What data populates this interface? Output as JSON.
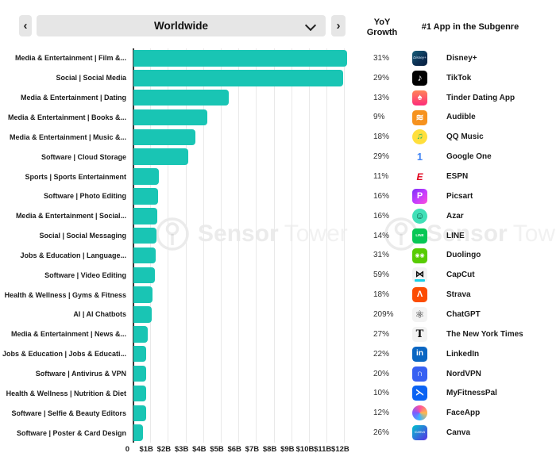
{
  "header": {
    "prev_label": "‹",
    "next_label": "›",
    "region_selector": {
      "value": "Worldwide"
    }
  },
  "columns": {
    "yoy_line1": "YoY",
    "yoy_line2": "Growth",
    "app_header": "#1 App in the Subgenre"
  },
  "watermark": {
    "bold": "Sensor",
    "light": "Tower"
  },
  "chart_data": {
    "type": "bar",
    "orientation": "horizontal",
    "unit": "USD billions (revenue)",
    "grid": true,
    "bar_color": "#19c5b4",
    "xlim": [
      0,
      12.5
    ],
    "x_ticks": [
      "0",
      "$1B",
      "$2B",
      "$3B",
      "$4B",
      "$5B",
      "$6B",
      "$7B",
      "$8B",
      "$9B",
      "$10B",
      "$11B",
      "$12B"
    ],
    "categories": [
      "Media & Entertainment | Film &...",
      "Social | Social Media",
      "Media & Entertainment | Dating",
      "Media & Entertainment | Books &...",
      "Media & Entertainment | Music &...",
      "Software | Cloud Storage",
      "Sports | Sports Entertainment",
      "Software | Photo Editing",
      "Media & Entertainment | Social...",
      "Social | Social Messaging",
      "Jobs & Education | Language...",
      "Software | Video Editing",
      "Health & Wellness | Gyms & Fitness",
      "AI | AI Chatbots",
      "Media & Entertainment | News &...",
      "Jobs & Education | Jobs & Educati...",
      "Software | Antivirus & VPN",
      "Health & Wellness | Nutrition & Diet",
      "Software | Selfie & Beauty Editors",
      "Software | Poster & Card Design"
    ],
    "values": [
      12.1,
      11.9,
      5.4,
      4.2,
      3.5,
      3.1,
      1.45,
      1.4,
      1.35,
      1.3,
      1.25,
      1.2,
      1.1,
      1.05,
      0.8,
      0.7,
      0.7,
      0.7,
      0.7,
      0.55
    ],
    "yoy_growth": [
      "31%",
      "29%",
      "13%",
      "9%",
      "18%",
      "29%",
      "11%",
      "16%",
      "16%",
      "14%",
      "31%",
      "59%",
      "18%",
      "209%",
      "27%",
      "22%",
      "20%",
      "10%",
      "12%",
      "26%"
    ],
    "top_apps": [
      "Disney+",
      "TikTok",
      "Tinder Dating App",
      "Audible",
      "QQ Music",
      "Google One",
      "ESPN",
      "Picsart",
      "Azar",
      "LINE",
      "Duolingo",
      "CapCut",
      "Strava",
      "ChatGPT",
      "The New York Times",
      "LinkedIn",
      "NordVPN",
      "MyFitnessPal",
      "FaceApp",
      "Canva"
    ]
  },
  "icons": [
    {
      "name": "disney-plus-icon",
      "bg": "linear-gradient(140deg,#17607a 0%,#0c2e52 60%,#081f3e 100%)",
      "glyph": "Disney+",
      "fg": "#d8ecff",
      "size": 4.5,
      "italic": true
    },
    {
      "name": "tiktok-icon",
      "bg": "#010101",
      "glyph": "♪",
      "fg": "#ffffff",
      "size": 12
    },
    {
      "name": "tinder-flame-icon",
      "bg": "linear-gradient(180deg,#ff8457,#fd2d7b)",
      "glyph": "♠",
      "fg": "#ffffff",
      "size": 11
    },
    {
      "name": "audible-icon",
      "bg": "#f6921e",
      "glyph": "≋",
      "fg": "#ffffff",
      "size": 12,
      "bold": true
    },
    {
      "name": "qq-music-icon",
      "bg": "#ffdf3c",
      "glyph": "♫",
      "fg": "#23b566",
      "size": 11,
      "shape": "circle"
    },
    {
      "name": "google-one-icon",
      "bg": "#ffffff",
      "glyph": "1",
      "fg": "#4285f4",
      "size": 13,
      "bold": true
    },
    {
      "name": "espn-icon",
      "bg": "#ffffff",
      "glyph": "E",
      "fg": "#e0001b",
      "size": 12,
      "bold": true,
      "italic": true
    },
    {
      "name": "picsart-icon",
      "bg": "linear-gradient(135deg,#7a2ff7,#c13cff 50%,#ff4dd8)",
      "glyph": "P",
      "fg": "#ffffff",
      "size": 11,
      "bold": true
    },
    {
      "name": "azar-icon",
      "bg": "#41e0b8",
      "glyph": "☺",
      "fg": "#0a5a44",
      "size": 12,
      "shape": "circle",
      "bold": true
    },
    {
      "name": "line-icon",
      "bg": "#06c755",
      "glyph": "LINE",
      "fg": "#ffffff",
      "size": 4.5,
      "bold": true
    },
    {
      "name": "duolingo-owl-icon",
      "bg": "#58cc02",
      "glyph": "◉◉",
      "fg": "#ffffff",
      "size": 7
    },
    {
      "name": "capcut-icon",
      "bg": "#f3f3f3",
      "glyph": "⋈",
      "fg": "#0a0a0a",
      "size": 11,
      "bold": true,
      "accent": "#15d0e8"
    },
    {
      "name": "strava-icon",
      "bg": "#fc4c02",
      "glyph": "Λ",
      "fg": "#ffffff",
      "size": 11,
      "bold": true
    },
    {
      "name": "chatgpt-icon",
      "bg": "#f3f3f3",
      "glyph": "⚛",
      "fg": "#141414",
      "size": 13
    },
    {
      "name": "new-york-times-icon",
      "bg": "#f3f3f3",
      "glyph": "T",
      "fg": "#111111",
      "size": 13,
      "serif": true,
      "bold": true
    },
    {
      "name": "linkedin-icon",
      "bg": "#0a66c2",
      "glyph": "in",
      "fg": "#ffffff",
      "size": 10,
      "bold": true
    },
    {
      "name": "nordvpn-icon",
      "bg": "#3760f2",
      "glyph": "∩",
      "fg": "#ffffff",
      "size": 11,
      "bold": true
    },
    {
      "name": "myfitnesspal-icon",
      "bg": "#0b63f3",
      "glyph": "⋋",
      "fg": "#ffffff",
      "size": 11,
      "bold": true
    },
    {
      "name": "faceapp-icon",
      "bg": "conic-gradient(from 180deg,#3ab6ff,#7b5cff,#ff4fa0,#ffb84d,#3ab6ff)",
      "glyph": "",
      "fg": "#ffffff",
      "size": 10,
      "shape": "circle"
    },
    {
      "name": "canva-icon",
      "bg": "linear-gradient(135deg,#00c4cc,#5a2ee5)",
      "glyph": "Canva",
      "fg": "#ffffff",
      "size": 4.5,
      "italic": true
    }
  ]
}
